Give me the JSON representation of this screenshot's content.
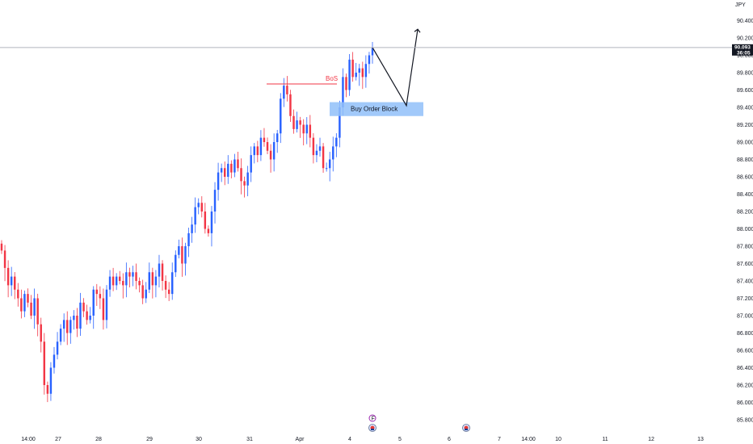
{
  "symbol_currency": "JPY",
  "price_axis": {
    "ticks": [
      "90.400",
      "90.200",
      "90.000",
      "89.800",
      "89.600",
      "89.400",
      "89.200",
      "89.000",
      "88.800",
      "88.600",
      "88.400",
      "88.200",
      "88.000",
      "87.800",
      "87.600",
      "87.400",
      "87.200",
      "87.000",
      "86.800",
      "86.600",
      "86.400",
      "86.200",
      "86.000",
      "85.800"
    ],
    "current_price": "90.093",
    "countdown": "36:05"
  },
  "time_axis": {
    "ticks": [
      "14:00",
      "27",
      "28",
      "29",
      "30",
      "31",
      "Apr",
      "4",
      "5",
      "6",
      "7",
      "14:00",
      "10",
      "11",
      "12",
      "13"
    ]
  },
  "annotations": {
    "bos_label": "BoS",
    "order_block_label": "Buy Order Block",
    "event_marker_label": "F"
  },
  "colors": {
    "bull": "#2962ff",
    "bear": "#f23645",
    "order_block": "#90bff9",
    "bos_line": "#f23645",
    "price_line": "#b2b5be",
    "price_tag": "#131722"
  },
  "chart_data": {
    "type": "candlestick",
    "title": "",
    "ylim": [
      85.75,
      90.55
    ],
    "closes": [
      87.75,
      87.55,
      87.35,
      87.45,
      87.3,
      87.2,
      87.05,
      87.25,
      87.15,
      87.0,
      87.2,
      86.9,
      86.7,
      86.2,
      86.1,
      86.4,
      86.55,
      86.7,
      86.85,
      86.95,
      86.8,
      86.95,
      87.0,
      86.85,
      87.15,
      87.05,
      86.95,
      87.0,
      87.3,
      87.25,
      87.2,
      86.95,
      87.3,
      87.45,
      87.35,
      87.45,
      87.4,
      87.35,
      87.5,
      87.45,
      87.5,
      87.4,
      87.35,
      87.2,
      87.3,
      87.5,
      87.35,
      87.45,
      87.6,
      87.4,
      87.3,
      87.25,
      87.5,
      87.7,
      87.8,
      87.6,
      87.8,
      87.95,
      88.05,
      88.25,
      88.3,
      88.2,
      88.0,
      87.95,
      88.2,
      88.45,
      88.65,
      88.7,
      88.6,
      88.75,
      88.65,
      88.8,
      88.7,
      88.55,
      88.5,
      88.65,
      88.85,
      88.95,
      88.85,
      89.05,
      89.0,
      88.9,
      88.8,
      89.0,
      89.1,
      89.5,
      89.65,
      89.55,
      89.3,
      89.15,
      89.25,
      89.2,
      89.1,
      89.2,
      89.05,
      88.85,
      88.9,
      88.95,
      88.7,
      88.7,
      88.8,
      88.95,
      89.05,
      89.4,
      89.75,
      89.6,
      89.95,
      89.75,
      89.8,
      89.85,
      89.75,
      89.9,
      90.0,
      90.09
    ],
    "bos_level": 89.67,
    "order_block": {
      "low": 89.3,
      "high": 89.46
    },
    "projection": {
      "from": 90.09,
      "pullback": 89.42,
      "target": 90.3
    }
  }
}
